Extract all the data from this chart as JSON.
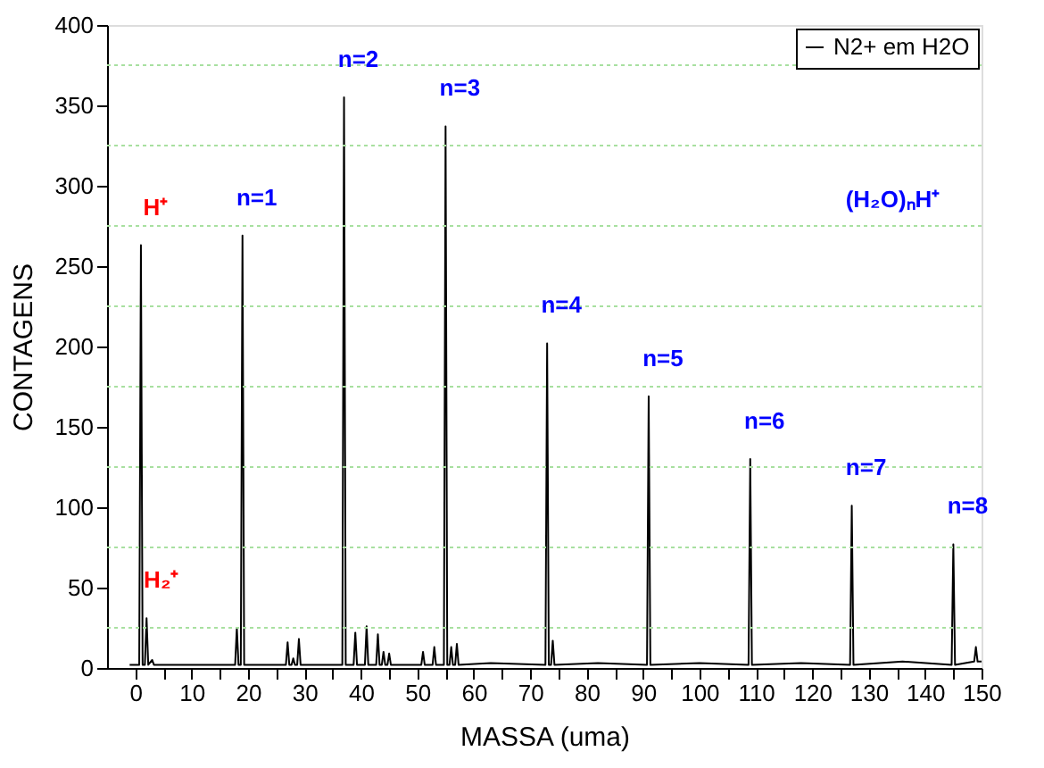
{
  "chart_data": {
    "type": "line",
    "xlabel": "MASSA (uma)",
    "ylabel": "CONTAGENS",
    "series": [
      {
        "name": "N2+ em H2O",
        "color": "#000000",
        "x": [
          -1,
          0.7,
          1,
          1.3,
          1.7,
          2,
          2.3,
          3,
          3.3,
          10,
          17.7,
          18,
          18.3,
          18.7,
          19,
          19.3,
          26.7,
          27,
          27.3,
          27.7,
          28,
          28.3,
          28.7,
          29,
          29.3,
          36.7,
          37,
          37.3,
          38.7,
          39,
          39.3,
          40.7,
          41,
          41.3,
          42.7,
          43,
          43.3,
          43.7,
          44,
          44.3,
          44.7,
          45,
          45.3,
          50.7,
          51,
          51.3,
          52.7,
          53,
          53.3,
          54.7,
          55,
          55.3,
          55.7,
          56,
          56.3,
          56.7,
          57,
          57.3,
          63,
          72.7,
          73,
          73.3,
          73.7,
          74,
          74.3,
          82,
          90.7,
          91,
          91.3,
          100,
          108.7,
          109,
          109.3,
          118,
          126.7,
          127,
          127.3,
          136,
          144.7,
          145,
          145.3,
          148.7,
          149,
          149.3,
          150
        ],
        "values": [
          2,
          2,
          263,
          2,
          2,
          31,
          2,
          5,
          2,
          2,
          2,
          25,
          2,
          2,
          269,
          2,
          2,
          16,
          2,
          2,
          6,
          2,
          2,
          18,
          2,
          2,
          355,
          2,
          2,
          22,
          2,
          2,
          26,
          2,
          2,
          21,
          2,
          2,
          10,
          2,
          2,
          9,
          2,
          2,
          10,
          2,
          2,
          13,
          2,
          2,
          337,
          2,
          2,
          13,
          2,
          2,
          15,
          2,
          3,
          2,
          202,
          2,
          2,
          17,
          2,
          3,
          2,
          169,
          2,
          3,
          2,
          130,
          2,
          3,
          2,
          101,
          2,
          4,
          2,
          77,
          2,
          4,
          13,
          4,
          4
        ]
      }
    ],
    "annotations": [
      {
        "text": "H⁺",
        "x": 1,
        "y": 263
      },
      {
        "text": "H₂⁺",
        "x": 2,
        "y": 31
      },
      {
        "text": "n=1",
        "x": 19,
        "y": 269
      },
      {
        "text": "n=2",
        "x": 37,
        "y": 355
      },
      {
        "text": "n=3",
        "x": 55,
        "y": 337
      },
      {
        "text": "n=4",
        "x": 73,
        "y": 202
      },
      {
        "text": "n=5",
        "x": 91,
        "y": 169
      },
      {
        "text": "n=6",
        "x": 109,
        "y": 130
      },
      {
        "text": "n=7",
        "x": 127,
        "y": 101
      },
      {
        "text": "n=8",
        "x": 145,
        "y": 77
      },
      "(H₂O)ₙH⁺"
    ],
    "xlim": [
      -5,
      150
    ],
    "xticks": [
      0,
      {
        "value": 5,
        "label": null
      },
      10,
      {
        "value": 15,
        "label": null
      },
      20,
      {
        "value": 25,
        "label": null
      },
      30,
      {
        "value": 35,
        "label": null
      },
      40,
      {
        "value": 45,
        "label": null
      },
      50,
      {
        "value": 55,
        "label": null
      },
      60,
      {
        "value": 65,
        "label": null
      },
      70,
      {
        "value": 75,
        "label": null
      },
      80,
      {
        "value": 85,
        "label": null
      },
      90,
      {
        "value": 95,
        "label": null
      },
      100,
      {
        "value": 105,
        "label": null
      },
      110,
      {
        "value": 115,
        "label": null
      },
      120,
      {
        "value": 125,
        "label": null
      },
      130,
      {
        "value": 135,
        "label": null
      },
      140,
      {
        "value": 145,
        "label": null
      },
      150
    ],
    "ylim": [
      0,
      400
    ],
    "yticks": [
      0,
      {
        "value": 25,
        "label": null
      },
      50,
      {
        "value": 75,
        "label": null
      },
      100,
      {
        "value": 125,
        "label": null
      },
      150,
      {
        "value": 175,
        "label": null
      },
      200,
      {
        "value": 225,
        "label": null
      },
      250,
      {
        "value": 275,
        "label": null
      },
      300,
      {
        "value": 325,
        "label": null
      },
      350,
      {
        "value": 375,
        "label": null
      },
      400
    ],
    "grid": "y",
    "legend": "top right",
    "marker": "none",
    "line_style": "solid"
  }
}
